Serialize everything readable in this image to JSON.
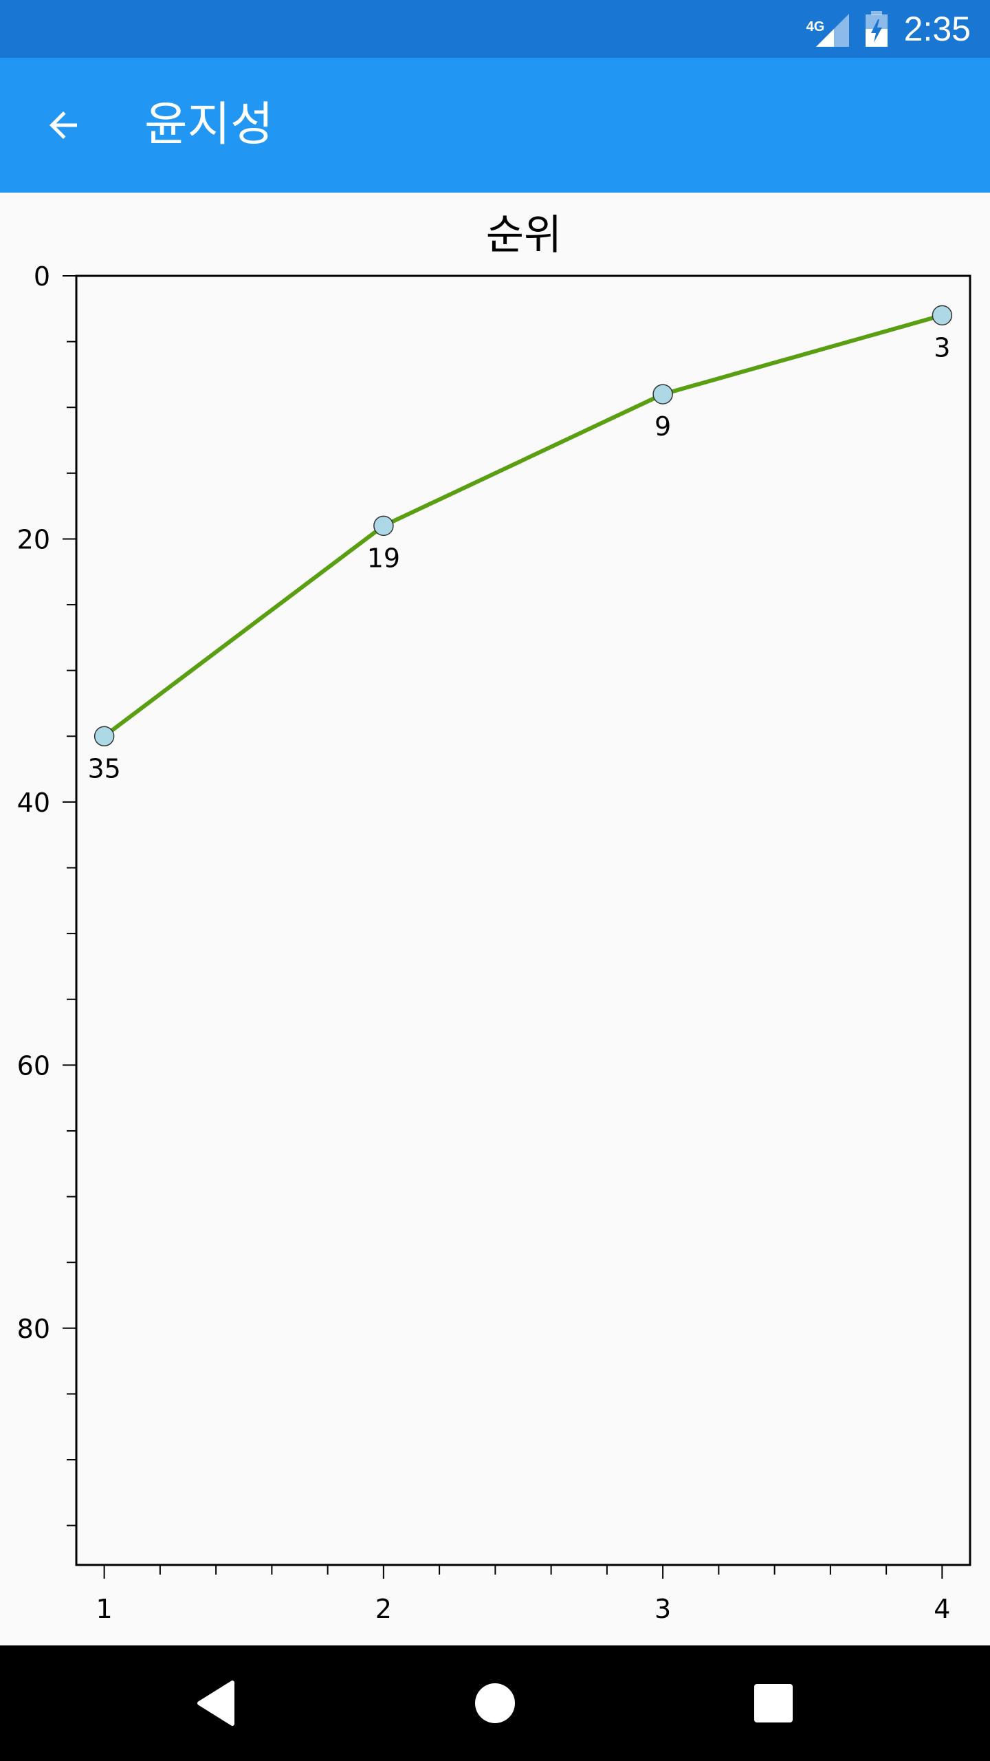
{
  "status_bar": {
    "network_label": "4G",
    "time": "2:35",
    "icons": [
      "signal-icon",
      "battery-charging-icon"
    ]
  },
  "app_bar": {
    "title": "윤지성",
    "back_icon": "arrow-back-icon",
    "color": "#2196f3",
    "status_color": "#1976d2"
  },
  "chart_data": {
    "type": "line",
    "title": "순위",
    "x": [
      1,
      2,
      3,
      4
    ],
    "values": [
      35,
      19,
      9,
      3
    ],
    "data_labels": [
      "35",
      "19",
      "9",
      "3"
    ],
    "x_ticks": [
      "1",
      "2",
      "3",
      "4"
    ],
    "y_ticks": [
      "0",
      "20",
      "40",
      "60",
      "80"
    ],
    "ylim": [
      0,
      98
    ],
    "xlim": [
      0.9,
      4.1
    ],
    "y_inverted": true,
    "line_color": "#5a9e12",
    "marker_color": "#add8e6",
    "grid": false
  },
  "nav_bar": {
    "icons": [
      "back-triangle-icon",
      "home-circle-icon",
      "recents-square-icon"
    ]
  }
}
